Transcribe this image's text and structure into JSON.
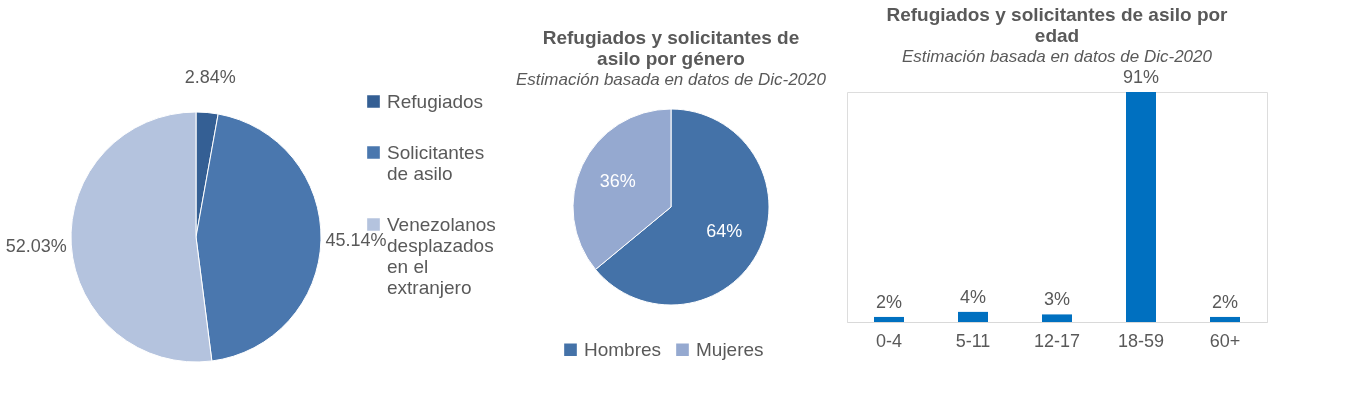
{
  "chart_data": [
    {
      "type": "pie",
      "categories": [
        "Refugiados",
        "Solicitantes de asilo",
        "Venezolanos desplazados en el extranjero"
      ],
      "values": [
        2.84,
        45.14,
        52.03
      ],
      "colors": [
        "#345f94",
        "#4a77ae",
        "#b4c3de"
      ],
      "value_labels": [
        "2.84%",
        "45.14%",
        "52.03%"
      ],
      "legend": "right"
    },
    {
      "type": "pie",
      "title": "Refugiados y solicitantes de asilo por género",
      "subtitle": "Estimación basada en datos de Dic-2020",
      "categories": [
        "Hombres",
        "Mujeres"
      ],
      "values": [
        64,
        36
      ],
      "colors": [
        "#4472a8",
        "#95a9d0"
      ],
      "value_labels": [
        "64%",
        "36%"
      ],
      "legend": "bottom"
    },
    {
      "type": "bar",
      "title": "Refugiados y solicitantes de asilo por edad",
      "subtitle": "Estimación basada en datos de Dic-2020",
      "categories": [
        "0-4",
        "5-11",
        "12-17",
        "18-59",
        "60+"
      ],
      "values": [
        2,
        4,
        3,
        91,
        2
      ],
      "color": "#0070c0",
      "value_labels": [
        "2%",
        "4%",
        "3%",
        "91%",
        "2%"
      ]
    }
  ]
}
